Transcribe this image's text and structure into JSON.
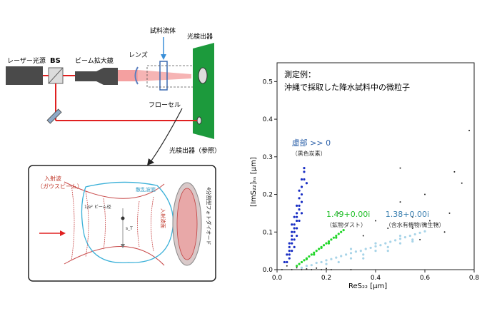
{
  "setup": {
    "laser_label": "レーザー光源",
    "bs_label": "BS",
    "expander_label": "ビーム拡大鏡",
    "lens_label": "レンズ",
    "sample_fluid_label": "試料流体",
    "detector_label": "光検出器",
    "flow_cell_label": "フローセル",
    "reference_detector_label": "光検出器（参照）"
  },
  "inset": {
    "incident_wave_label": "入射波",
    "gaussian_beam_label": "（ガウスビーム）",
    "scattered_wave_label": "散乱波面",
    "beam_waist_label": "1/e² ビーム径",
    "incident_wavefront_label": "入射波面",
    "detector_label": "4分割型フォトダイオード",
    "particle_label": "s_T"
  },
  "chart_data": {
    "type": "scatter",
    "title": "測定例：",
    "subtitle": "沖縄で採取した降水試料中の微粒子",
    "xlabel": "ReS₂₂ [μm]",
    "ylabel": "[ImS₂₂]ₕₛ [μm]",
    "xlim": [
      0,
      0.8
    ],
    "ylim": [
      0,
      0.55
    ],
    "xticks": [
      "0.0",
      "0.2",
      "0.4",
      "0.6",
      "0.8"
    ],
    "yticks": [
      "0.0",
      "0.1",
      "0.2",
      "0.3",
      "0.4",
      "0.5"
    ],
    "grid": false,
    "series": [
      {
        "name": "虚部 >> 0",
        "label": "（黒色炭素）",
        "color": "#1a2fc4",
        "points": [
          [
            0.04,
            0.02
          ],
          [
            0.05,
            0.04
          ],
          [
            0.05,
            0.06
          ],
          [
            0.06,
            0.07
          ],
          [
            0.06,
            0.09
          ],
          [
            0.07,
            0.1
          ],
          [
            0.07,
            0.12
          ],
          [
            0.08,
            0.13
          ],
          [
            0.08,
            0.15
          ],
          [
            0.09,
            0.17
          ],
          [
            0.09,
            0.19
          ],
          [
            0.1,
            0.2
          ],
          [
            0.1,
            0.22
          ],
          [
            0.11,
            0.24
          ],
          [
            0.11,
            0.26
          ],
          [
            0.05,
            0.05
          ],
          [
            0.06,
            0.08
          ],
          [
            0.07,
            0.11
          ],
          [
            0.08,
            0.14
          ],
          [
            0.09,
            0.16
          ],
          [
            0.1,
            0.18
          ],
          [
            0.06,
            0.05
          ],
          [
            0.07,
            0.08
          ],
          [
            0.08,
            0.11
          ],
          [
            0.05,
            0.03
          ],
          [
            0.04,
            0.04
          ],
          [
            0.07,
            0.14
          ],
          [
            0.08,
            0.17
          ],
          [
            0.09,
            0.21
          ],
          [
            0.1,
            0.24
          ],
          [
            0.11,
            0.27
          ],
          [
            0.06,
            0.1
          ],
          [
            0.05,
            0.07
          ],
          [
            0.09,
            0.13
          ],
          [
            0.1,
            0.15
          ],
          [
            0.12,
            0.23
          ],
          [
            0.03,
            0.02
          ],
          [
            0.07,
            0.06
          ],
          [
            0.08,
            0.09
          ],
          [
            0.06,
            0.12
          ]
        ]
      },
      {
        "name": "1.49+0.00i",
        "label": "（鉱物ダスト）",
        "color": "#22d62a",
        "points": [
          [
            0.08,
            0.01
          ],
          [
            0.09,
            0.015
          ],
          [
            0.1,
            0.02
          ],
          [
            0.11,
            0.025
          ],
          [
            0.12,
            0.03
          ],
          [
            0.13,
            0.035
          ],
          [
            0.14,
            0.04
          ],
          [
            0.15,
            0.045
          ],
          [
            0.16,
            0.05
          ],
          [
            0.17,
            0.055
          ],
          [
            0.18,
            0.06
          ],
          [
            0.19,
            0.065
          ],
          [
            0.2,
            0.07
          ],
          [
            0.21,
            0.075
          ],
          [
            0.22,
            0.08
          ],
          [
            0.23,
            0.085
          ],
          [
            0.24,
            0.09
          ],
          [
            0.25,
            0.095
          ],
          [
            0.26,
            0.1
          ],
          [
            0.27,
            0.105
          ],
          [
            0.12,
            0.028
          ],
          [
            0.15,
            0.04
          ],
          [
            0.18,
            0.058
          ],
          [
            0.21,
            0.07
          ],
          [
            0.24,
            0.085
          ]
        ]
      },
      {
        "name": "1.38+0.00i",
        "label": "（含水有機物/微生物）",
        "color": "#a8d4e8",
        "points": [
          [
            0.1,
            0.005
          ],
          [
            0.12,
            0.01
          ],
          [
            0.14,
            0.012
          ],
          [
            0.16,
            0.018
          ],
          [
            0.18,
            0.02
          ],
          [
            0.2,
            0.025
          ],
          [
            0.22,
            0.028
          ],
          [
            0.24,
            0.032
          ],
          [
            0.26,
            0.036
          ],
          [
            0.28,
            0.04
          ],
          [
            0.3,
            0.044
          ],
          [
            0.32,
            0.048
          ],
          [
            0.34,
            0.05
          ],
          [
            0.36,
            0.055
          ],
          [
            0.38,
            0.058
          ],
          [
            0.4,
            0.062
          ],
          [
            0.42,
            0.065
          ],
          [
            0.44,
            0.07
          ],
          [
            0.46,
            0.074
          ],
          [
            0.48,
            0.078
          ],
          [
            0.5,
            0.082
          ],
          [
            0.52,
            0.086
          ],
          [
            0.54,
            0.09
          ],
          [
            0.56,
            0.094
          ],
          [
            0.58,
            0.098
          ],
          [
            0.6,
            0.102
          ],
          [
            0.2,
            0.015
          ],
          [
            0.25,
            0.02
          ],
          [
            0.3,
            0.03
          ],
          [
            0.35,
            0.04
          ],
          [
            0.4,
            0.05
          ],
          [
            0.45,
            0.06
          ],
          [
            0.5,
            0.07
          ],
          [
            0.55,
            0.08
          ],
          [
            0.3,
            0.055
          ],
          [
            0.4,
            0.07
          ],
          [
            0.5,
            0.09
          ],
          [
            0.35,
            0.03
          ],
          [
            0.45,
            0.05
          ],
          [
            0.55,
            0.075
          ]
        ]
      },
      {
        "name": "",
        "color": "#222222",
        "points": [
          [
            0.02,
            0.0
          ],
          [
            0.04,
            0.01
          ],
          [
            0.06,
            0.0
          ],
          [
            0.08,
            0.005
          ],
          [
            0.1,
            0.0
          ],
          [
            0.12,
            0.002
          ],
          [
            0.14,
            0.0
          ],
          [
            0.16,
            0.004
          ],
          [
            0.18,
            0.0
          ],
          [
            0.2,
            0.003
          ],
          [
            0.22,
            0.0
          ],
          [
            0.3,
            0.0
          ],
          [
            0.5,
            0.18
          ],
          [
            0.55,
            0.14
          ],
          [
            0.6,
            0.12
          ],
          [
            0.62,
            0.13
          ],
          [
            0.65,
            0.12
          ],
          [
            0.7,
            0.15
          ],
          [
            0.72,
            0.26
          ],
          [
            0.75,
            0.23
          ],
          [
            0.35,
            0.09
          ],
          [
            0.45,
            0.11
          ],
          [
            0.55,
            0.11
          ],
          [
            0.6,
            0.2
          ],
          [
            0.78,
            0.37
          ],
          [
            0.68,
            0.1
          ],
          [
            0.4,
            0.13
          ],
          [
            0.5,
            0.27
          ],
          [
            0.25,
            0.15
          ],
          [
            0.58,
            0.08
          ]
        ]
      }
    ]
  }
}
